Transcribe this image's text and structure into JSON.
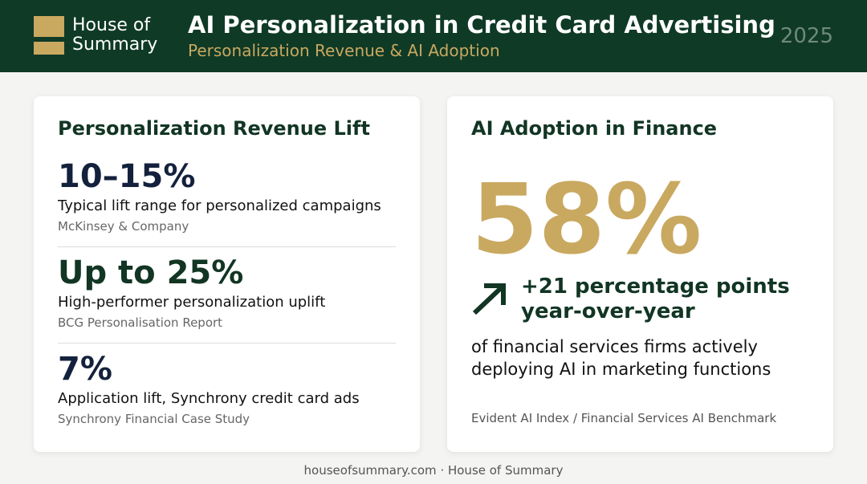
{
  "header": {
    "brand": [
      "House of",
      "Summary"
    ],
    "title": "AI Personalization in Credit Card Advertising",
    "subtitle": "Personalization Revenue & AI Adoption",
    "year": "2025"
  },
  "left_card": {
    "title": "Personalization Revenue Lift",
    "stats": [
      {
        "value": "10–15%",
        "label": "Typical lift range for personalized campaigns",
        "source": "McKinsey & Company"
      },
      {
        "value": "Up to 25%",
        "label": "High-performer personalization uplift",
        "source": "BCG Personalisation Report"
      },
      {
        "value": "7%",
        "label": "Application lift, Synchrony credit card ads",
        "source": "Synchrony Financial Case Study"
      }
    ]
  },
  "right_card": {
    "title": "AI Adoption in Finance",
    "value": "58%",
    "change": [
      "+21 percentage points",
      "year-over-year"
    ],
    "description": [
      "of financial services firms actively",
      "deploying AI in marketing functions"
    ],
    "source": "Evident AI Index / Financial Services AI Benchmark"
  },
  "footer": "houseofsummary.com · House of Summary"
}
